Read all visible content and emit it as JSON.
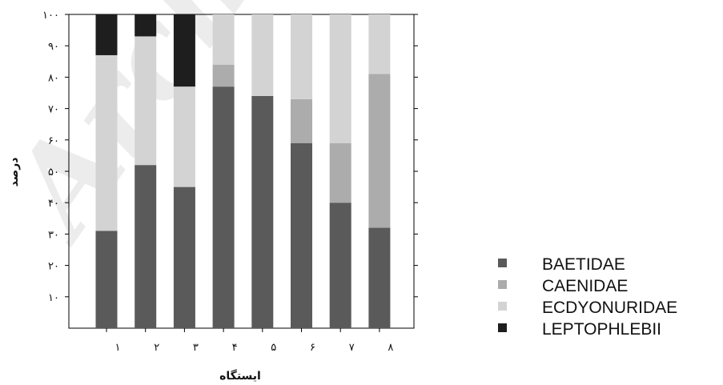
{
  "chart_data": {
    "type": "bar",
    "stacked": true,
    "categories": [
      "۱",
      "۲",
      "۳",
      "۴",
      "۵",
      "۶",
      "۷",
      "۸"
    ],
    "xlabel": "ایستگاه",
    "ylabel": "درصد",
    "ylim": [
      0,
      100
    ],
    "yticks": [
      10,
      20,
      30,
      40,
      50,
      60,
      70,
      80,
      90,
      100
    ],
    "ytick_labels": [
      "۱۰",
      "۲۰",
      "۳۰",
      "۴۰",
      "۵۰",
      "۶۰",
      "۷۰",
      "۸۰",
      "۹۰",
      "۱۰۰"
    ],
    "grid": false,
    "legend_position": "bottom-right",
    "series": [
      {
        "name": "BAETIDAE",
        "color": "#5a5a5a",
        "values": [
          31,
          52,
          45,
          77,
          74,
          59,
          40,
          32
        ]
      },
      {
        "name": "CAENIDAE",
        "color": "#acacac",
        "values": [
          0,
          0,
          0,
          7,
          0,
          14,
          19,
          49
        ]
      },
      {
        "name": "ECDYONURIDAE",
        "color": "#d3d3d3",
        "values": [
          56,
          41,
          32,
          16,
          26,
          27,
          41,
          19
        ]
      },
      {
        "name": "LEPTOPHLEBII",
        "color": "#1e1e1e",
        "values": [
          13,
          7,
          23,
          0,
          0,
          0,
          0,
          0
        ]
      }
    ]
  },
  "watermark": "Archive"
}
